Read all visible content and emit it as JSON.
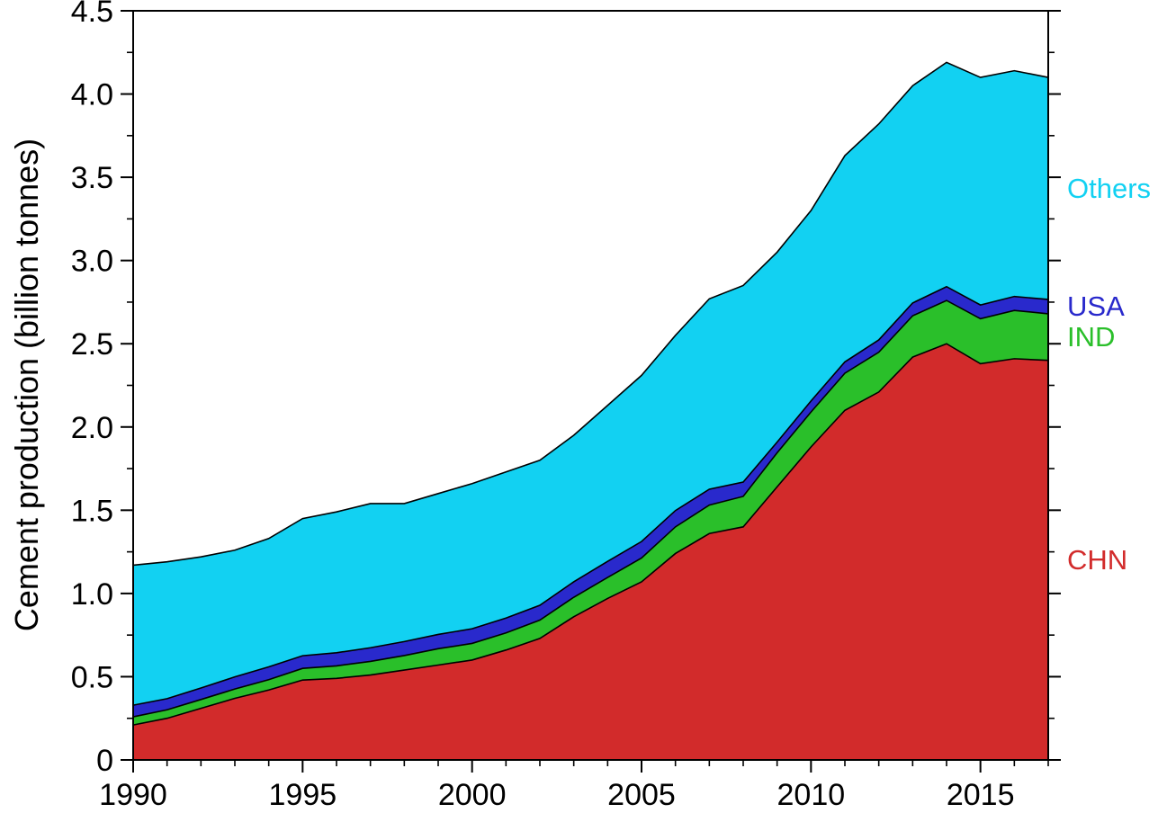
{
  "figure": {
    "background": "#ffffff"
  },
  "chart_data": {
    "type": "area",
    "stacked": true,
    "title": "",
    "xlabel": "",
    "ylabel": "Cement production (billion tonnes)",
    "xlim": [
      1990,
      2017
    ],
    "ylim": [
      0,
      4.5
    ],
    "grid": false,
    "legend_position": "right",
    "x": [
      1990,
      1991,
      1992,
      1993,
      1994,
      1995,
      1996,
      1997,
      1998,
      1999,
      2000,
      2001,
      2002,
      2003,
      2004,
      2005,
      2006,
      2007,
      2008,
      2009,
      2010,
      2011,
      2012,
      2013,
      2014,
      2015,
      2016,
      2017
    ],
    "series": [
      {
        "name": "CHN",
        "color": "#d22b2b",
        "values": [
          0.21,
          0.25,
          0.31,
          0.37,
          0.42,
          0.48,
          0.49,
          0.51,
          0.54,
          0.57,
          0.6,
          0.66,
          0.73,
          0.86,
          0.97,
          1.07,
          1.24,
          1.36,
          1.4,
          1.64,
          1.88,
          2.1,
          2.21,
          2.42,
          2.5,
          2.38,
          2.41,
          2.4
        ]
      },
      {
        "name": "IND",
        "color": "#2abf2a",
        "values": [
          0.049,
          0.051,
          0.053,
          0.056,
          0.062,
          0.07,
          0.075,
          0.082,
          0.087,
          0.098,
          0.1,
          0.103,
          0.11,
          0.117,
          0.126,
          0.143,
          0.16,
          0.171,
          0.183,
          0.205,
          0.21,
          0.223,
          0.239,
          0.248,
          0.26,
          0.27,
          0.29,
          0.28
        ]
      },
      {
        "name": "USA",
        "color": "#2929cc",
        "values": [
          0.07,
          0.067,
          0.069,
          0.073,
          0.077,
          0.076,
          0.079,
          0.082,
          0.084,
          0.086,
          0.088,
          0.089,
          0.089,
          0.093,
          0.097,
          0.099,
          0.098,
          0.095,
          0.086,
          0.064,
          0.066,
          0.068,
          0.074,
          0.077,
          0.083,
          0.083,
          0.084,
          0.086
        ]
      },
      {
        "name": "Others",
        "color": "#12d1f2",
        "values": [
          0.841,
          0.822,
          0.788,
          0.761,
          0.771,
          0.824,
          0.846,
          0.866,
          0.829,
          0.846,
          0.872,
          0.878,
          0.871,
          0.88,
          0.937,
          0.998,
          1.052,
          1.144,
          1.181,
          1.141,
          1.144,
          1.239,
          1.297,
          1.305,
          1.347,
          1.367,
          1.356,
          1.334
        ]
      }
    ],
    "yticks": [
      {
        "v": 0,
        "label": "0"
      },
      {
        "v": 0.5,
        "label": "0.5"
      },
      {
        "v": 1.0,
        "label": "1.0"
      },
      {
        "v": 1.5,
        "label": "1.5"
      },
      {
        "v": 2.0,
        "label": "2.0"
      },
      {
        "v": 2.5,
        "label": "2.5"
      },
      {
        "v": 3.0,
        "label": "3.0"
      },
      {
        "v": 3.5,
        "label": "3.5"
      },
      {
        "v": 4.0,
        "label": "4.0"
      },
      {
        "v": 4.5,
        "label": "4.5"
      }
    ],
    "xticks": [
      {
        "v": 1990,
        "label": "1990"
      },
      {
        "v": 1995,
        "label": "1995"
      },
      {
        "v": 2000,
        "label": "2000"
      },
      {
        "v": 2005,
        "label": "2005"
      },
      {
        "v": 2010,
        "label": "2010"
      },
      {
        "v": 2015,
        "label": "2015"
      }
    ],
    "axis_color": "#000000"
  }
}
